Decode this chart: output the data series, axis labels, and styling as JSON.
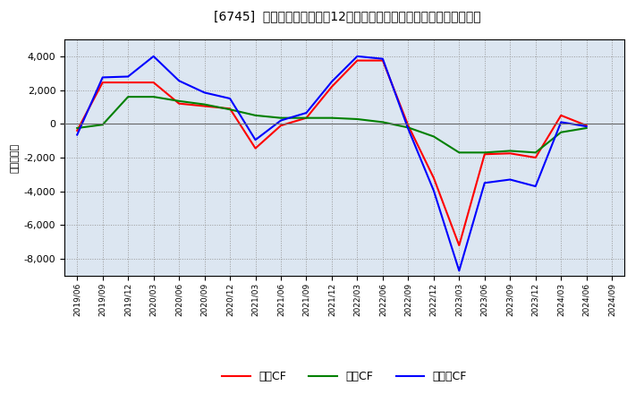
{
  "title": "[6745]  キャッシュフローの12か月移動合計の対前年同期増減額の推移",
  "ylabel": "（百万円）",
  "background_color": "#ffffff",
  "plot_bg_color": "#dce6f1",
  "grid_color": "#999999",
  "x_labels": [
    "2019/06",
    "2019/09",
    "2019/12",
    "2020/03",
    "2020/06",
    "2020/09",
    "2020/12",
    "2021/03",
    "2021/06",
    "2021/09",
    "2021/12",
    "2022/03",
    "2022/06",
    "2022/09",
    "2022/12",
    "2023/03",
    "2023/06",
    "2023/09",
    "2023/12",
    "2024/03",
    "2024/06",
    "2024/09"
  ],
  "operating_cf": [
    -400,
    2450,
    2450,
    2450,
    1200,
    1050,
    900,
    -1450,
    -100,
    350,
    2200,
    3750,
    3750,
    -100,
    -3200,
    -7200,
    -1800,
    -1750,
    -2000,
    500,
    -100,
    null
  ],
  "investing_cf": [
    -250,
    -50,
    1600,
    1600,
    1350,
    1150,
    850,
    500,
    350,
    350,
    350,
    280,
    100,
    -220,
    -750,
    -1700,
    -1700,
    -1600,
    -1700,
    -500,
    -250,
    null
  ],
  "free_cf": [
    -650,
    2750,
    2800,
    4000,
    2550,
    1850,
    1500,
    -950,
    200,
    650,
    2500,
    4000,
    3850,
    -300,
    -3950,
    -8700,
    -3500,
    -3300,
    -3700,
    100,
    -150,
    null
  ],
  "operating_color": "#ff0000",
  "investing_color": "#008000",
  "free_color": "#0000ff",
  "ylim": [
    -9000,
    5000
  ],
  "yticks": [
    -8000,
    -6000,
    -4000,
    -2000,
    0,
    2000,
    4000
  ],
  "legend_labels": [
    "営業CF",
    "投資CF",
    "フリーCF"
  ]
}
